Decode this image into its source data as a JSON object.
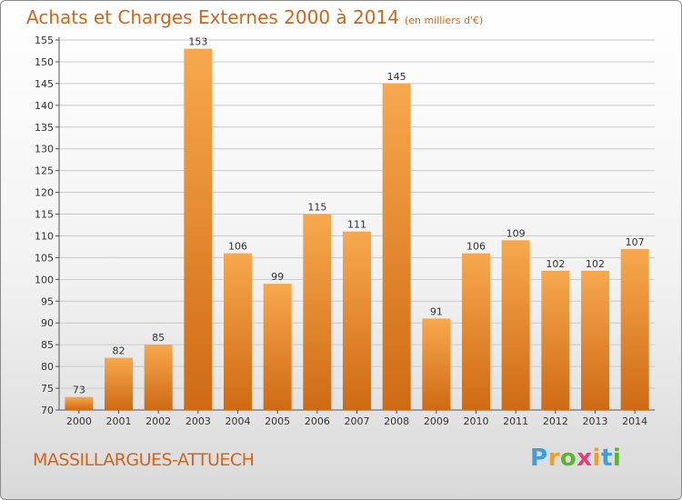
{
  "title": "Achats et Charges Externes 2000 à 2014",
  "subtitle": "(en milliers d'€)",
  "commune": "MASSILLARGUES-ATTUECH",
  "logo": {
    "letters": [
      {
        "char": "P",
        "color": "#3f9de0"
      },
      {
        "char": "r",
        "color": "#f0a020"
      },
      {
        "char": "o",
        "color": "#5bb52e"
      },
      {
        "char": "x",
        "color": "#e83d7a"
      },
      {
        "char": "i",
        "color": "#f0a020"
      },
      {
        "char": "t",
        "color": "#3f9de0"
      },
      {
        "char": "i",
        "color": "#5bb52e"
      }
    ]
  },
  "colors": {
    "bar_light": "#f7a84e",
    "bar_dark": "#cf6a14",
    "title": "#d0651a",
    "grid": "#c8c8c8"
  },
  "chart_data": {
    "type": "bar",
    "title": "Achats et Charges Externes 2000 à 2014",
    "subtitle": "(en milliers d'€)",
    "xlabel": "",
    "ylabel": "",
    "categories": [
      "2000",
      "2001",
      "2002",
      "2003",
      "2004",
      "2005",
      "2006",
      "2007",
      "2008",
      "2009",
      "2010",
      "2011",
      "2012",
      "2013",
      "2014"
    ],
    "values": [
      73,
      82,
      85,
      153,
      106,
      99,
      115,
      111,
      145,
      91,
      106,
      109,
      102,
      102,
      107
    ],
    "ylim": [
      70,
      155
    ],
    "yticks": [
      70,
      75,
      80,
      85,
      90,
      95,
      100,
      105,
      110,
      115,
      120,
      125,
      130,
      135,
      140,
      145,
      150,
      155
    ],
    "grid": true,
    "legend": "none"
  }
}
